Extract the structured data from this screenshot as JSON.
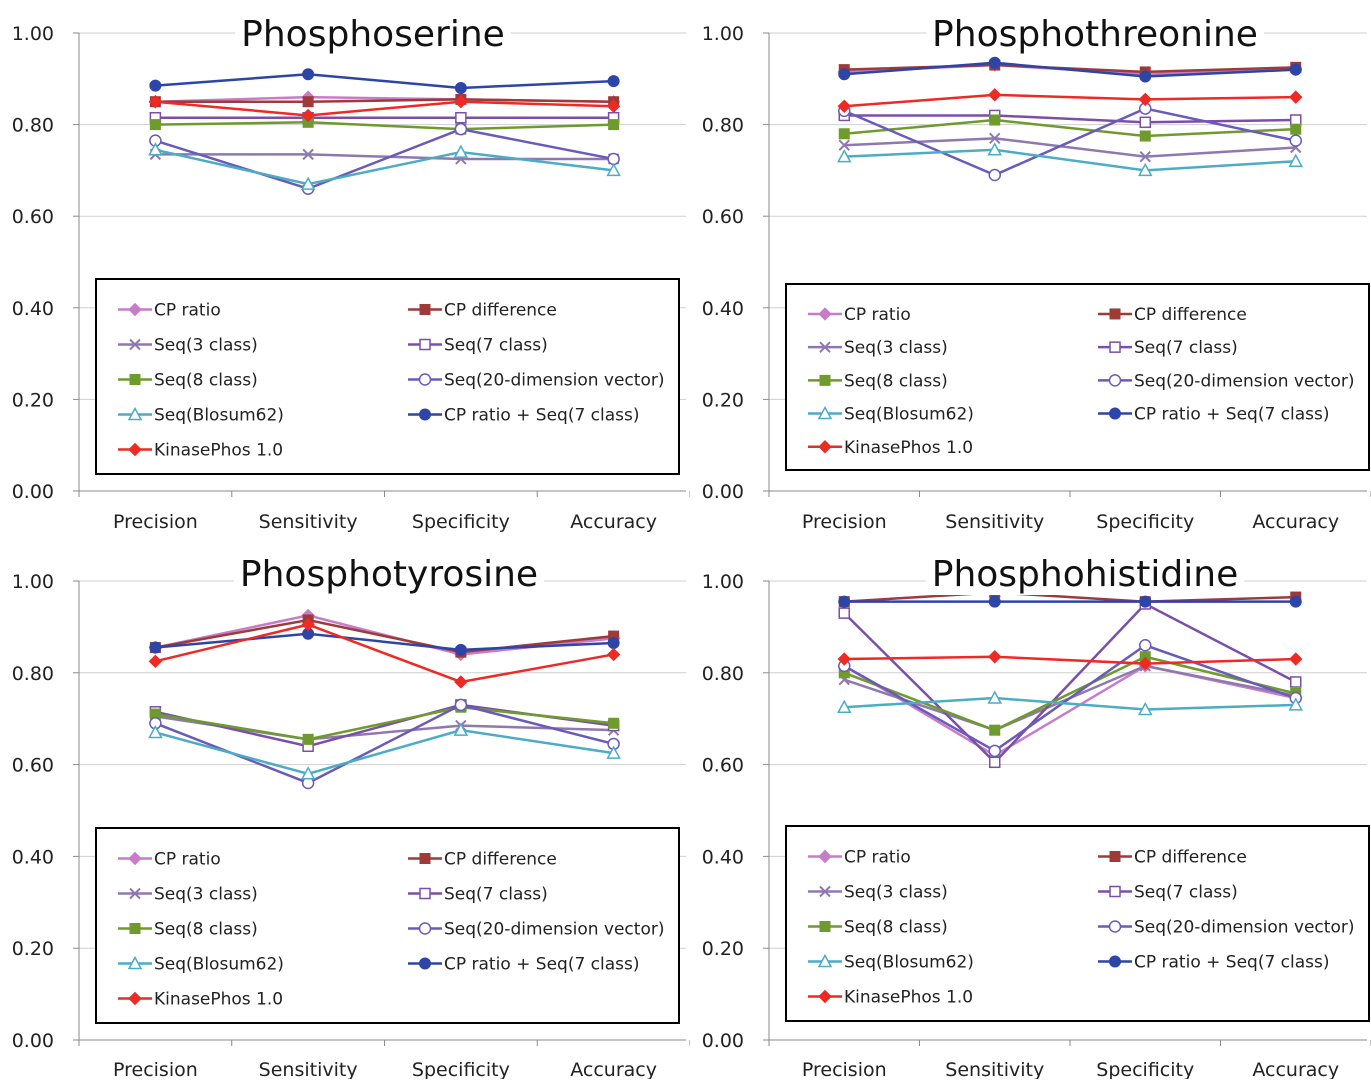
{
  "figure": {
    "categories": [
      "Precision",
      "Sensitivity",
      "Specificity",
      "Accuracy"
    ],
    "yticks": [
      "0.00",
      "0.20",
      "0.40",
      "0.60",
      "0.80",
      "1.00"
    ],
    "series_styles": {
      "CP ratio": {
        "color": "#C77CC9",
        "marker": "diamond"
      },
      "CP difference": {
        "color": "#9E3A38",
        "marker": "square"
      },
      "Seq(3 class)": {
        "color": "#8F78B0",
        "marker": "x"
      },
      "Seq(7 class)": {
        "color": "#7B4FA8",
        "marker": "open-square"
      },
      "Seq(8 class)": {
        "color": "#6E9A2E",
        "marker": "square"
      },
      "Seq(20-dimension vector)": {
        "color": "#6A5ABA",
        "marker": "open-circle"
      },
      "Seq(Blosum62)": {
        "color": "#4BACC6",
        "marker": "open-triangle"
      },
      "CP ratio + Seq(7 class)": {
        "color": "#2E45A8",
        "marker": "circle"
      },
      "KinasePhos 1.0": {
        "color": "#EE2A24",
        "marker": "diamond"
      }
    },
    "legend_order": [
      "CP ratio",
      "CP difference",
      "Seq(3 class)",
      "Seq(7 class)",
      "Seq(8 class)",
      "Seq(20-dimension vector)",
      "Seq(Blosum62)",
      "CP ratio + Seq(7 class)",
      "KinasePhos 1.0"
    ]
  },
  "chart_data": [
    {
      "type": "line",
      "title": "Phosphoserine",
      "categories": [
        "Precision",
        "Sensitivity",
        "Specificity",
        "Accuracy"
      ],
      "ylim": [
        0,
        1
      ],
      "grid": "horizontal",
      "legend_position": "bottom",
      "series": [
        {
          "name": "CP ratio",
          "values": [
            0.85,
            0.86,
            0.855,
            0.85
          ]
        },
        {
          "name": "CP difference",
          "values": [
            0.85,
            0.85,
            0.855,
            0.85
          ]
        },
        {
          "name": "Seq(3 class)",
          "values": [
            0.735,
            0.735,
            0.725,
            0.725
          ]
        },
        {
          "name": "Seq(7 class)",
          "values": [
            0.815,
            0.815,
            0.815,
            0.815
          ]
        },
        {
          "name": "Seq(8 class)",
          "values": [
            0.8,
            0.805,
            0.79,
            0.8
          ]
        },
        {
          "name": "Seq(20-dimension vector)",
          "values": [
            0.765,
            0.66,
            0.79,
            0.725
          ]
        },
        {
          "name": "Seq(Blosum62)",
          "values": [
            0.745,
            0.67,
            0.74,
            0.7
          ]
        },
        {
          "name": "CP ratio + Seq(7 class)",
          "values": [
            0.885,
            0.91,
            0.88,
            0.895
          ]
        },
        {
          "name": "KinasePhos 1.0",
          "values": [
            0.85,
            0.82,
            0.85,
            0.84
          ]
        }
      ]
    },
    {
      "type": "line",
      "title": "Phosphothreonine",
      "categories": [
        "Precision",
        "Sensitivity",
        "Specificity",
        "Accuracy"
      ],
      "ylim": [
        0,
        1
      ],
      "grid": "horizontal",
      "legend_position": "bottom",
      "series": [
        {
          "name": "CP ratio",
          "values": [
            0.915,
            0.93,
            0.91,
            0.92
          ]
        },
        {
          "name": "CP difference",
          "values": [
            0.92,
            0.93,
            0.915,
            0.925
          ]
        },
        {
          "name": "Seq(3 class)",
          "values": [
            0.755,
            0.77,
            0.73,
            0.75
          ]
        },
        {
          "name": "Seq(7 class)",
          "values": [
            0.82,
            0.82,
            0.805,
            0.81
          ]
        },
        {
          "name": "Seq(8 class)",
          "values": [
            0.78,
            0.81,
            0.775,
            0.79
          ]
        },
        {
          "name": "Seq(20-dimension vector)",
          "values": [
            0.83,
            0.69,
            0.835,
            0.765
          ]
        },
        {
          "name": "Seq(Blosum62)",
          "values": [
            0.73,
            0.745,
            0.7,
            0.72
          ]
        },
        {
          "name": "CP ratio + Seq(7 class)",
          "values": [
            0.91,
            0.935,
            0.905,
            0.92
          ]
        },
        {
          "name": "KinasePhos 1.0",
          "values": [
            0.84,
            0.865,
            0.855,
            0.86
          ]
        }
      ]
    },
    {
      "type": "line",
      "title": "Phosphotyrosine",
      "categories": [
        "Precision",
        "Sensitivity",
        "Specificity",
        "Accuracy"
      ],
      "ylim": [
        0,
        1
      ],
      "grid": "horizontal",
      "legend_position": "bottom",
      "series": [
        {
          "name": "CP ratio",
          "values": [
            0.855,
            0.925,
            0.84,
            0.875
          ]
        },
        {
          "name": "CP difference",
          "values": [
            0.855,
            0.915,
            0.845,
            0.88
          ]
        },
        {
          "name": "Seq(3 class)",
          "values": [
            0.705,
            0.655,
            0.685,
            0.675
          ]
        },
        {
          "name": "Seq(7 class)",
          "values": [
            0.715,
            0.64,
            0.73,
            0.685
          ]
        },
        {
          "name": "Seq(8 class)",
          "values": [
            0.71,
            0.655,
            0.725,
            0.69
          ]
        },
        {
          "name": "Seq(20-dimension vector)",
          "values": [
            0.69,
            0.56,
            0.73,
            0.645
          ]
        },
        {
          "name": "Seq(Blosum62)",
          "values": [
            0.67,
            0.58,
            0.675,
            0.625
          ]
        },
        {
          "name": "CP ratio + Seq(7 class)",
          "values": [
            0.855,
            0.885,
            0.85,
            0.865
          ]
        },
        {
          "name": "KinasePhos 1.0",
          "values": [
            0.825,
            0.905,
            0.78,
            0.84
          ]
        }
      ]
    },
    {
      "type": "line",
      "title": "Phosphohistidine",
      "categories": [
        "Precision",
        "Sensitivity",
        "Specificity",
        "Accuracy"
      ],
      "ylim": [
        0,
        1
      ],
      "grid": "horizontal",
      "legend_position": "bottom",
      "series": [
        {
          "name": "CP ratio",
          "values": [
            0.815,
            0.62,
            0.815,
            0.745
          ]
        },
        {
          "name": "CP difference",
          "values": [
            0.955,
            0.975,
            0.955,
            0.965
          ]
        },
        {
          "name": "Seq(3 class)",
          "values": [
            0.785,
            0.675,
            0.815,
            0.75
          ]
        },
        {
          "name": "Seq(7 class)",
          "values": [
            0.93,
            0.605,
            0.95,
            0.78
          ]
        },
        {
          "name": "Seq(8 class)",
          "values": [
            0.8,
            0.675,
            0.835,
            0.755
          ]
        },
        {
          "name": "Seq(20-dimension vector)",
          "values": [
            0.815,
            0.63,
            0.86,
            0.745
          ]
        },
        {
          "name": "Seq(Blosum62)",
          "values": [
            0.725,
            0.745,
            0.72,
            0.73
          ]
        },
        {
          "name": "CP ratio + Seq(7 class)",
          "values": [
            0.955,
            0.955,
            0.955,
            0.955
          ]
        },
        {
          "name": "KinasePhos 1.0",
          "values": [
            0.83,
            0.835,
            0.82,
            0.83
          ]
        }
      ]
    }
  ]
}
